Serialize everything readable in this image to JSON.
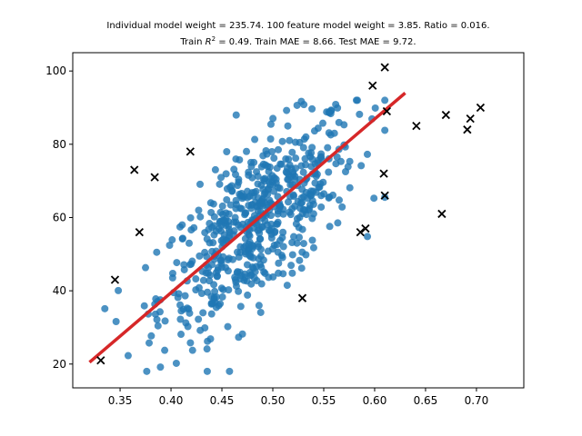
{
  "chart_data": {
    "type": "scatter",
    "title_line1": "Individual model weight = 235.74. 100 feature model weight = 3.85. Ratio = 0.016.",
    "title_line2_prefix": "Train ",
    "title_line2_r": "R",
    "title_line2_sup": "2",
    "title_line2_suffix": " = 0.49. Train MAE = 8.66. Test MAE = 9.72.",
    "xlim": [
      0.3035,
      0.7465
    ],
    "ylim": [
      13.5,
      105.0
    ],
    "x_ticks": [
      0.35,
      0.4,
      0.45,
      0.5,
      0.55,
      0.6,
      0.65,
      0.7
    ],
    "x_tick_labels": [
      "0.35",
      "0.40",
      "0.45",
      "0.50",
      "0.55",
      "0.60",
      "0.65",
      "0.70"
    ],
    "y_ticks": [
      20,
      40,
      60,
      80,
      100
    ],
    "y_tick_labels": [
      "20",
      "40",
      "60",
      "80",
      "100"
    ],
    "grid": false,
    "colors": {
      "train": "#1f77b4",
      "test": "#000000",
      "fit": "#d62728"
    },
    "fit_line": {
      "x": [
        0.32,
        0.63
      ],
      "y": [
        20.5,
        94.0
      ]
    },
    "test_points": [
      [
        0.331,
        21
      ],
      [
        0.345,
        43
      ],
      [
        0.364,
        73
      ],
      [
        0.369,
        56
      ],
      [
        0.384,
        71
      ],
      [
        0.419,
        78
      ],
      [
        0.529,
        38
      ],
      [
        0.586,
        56
      ],
      [
        0.591,
        57
      ],
      [
        0.598,
        96
      ],
      [
        0.609,
        72
      ],
      [
        0.61,
        66
      ],
      [
        0.61,
        101
      ],
      [
        0.612,
        89
      ],
      [
        0.641,
        85
      ],
      [
        0.666,
        61
      ],
      [
        0.67,
        88
      ],
      [
        0.691,
        84
      ],
      [
        0.694,
        87
      ],
      [
        0.704,
        90
      ]
    ],
    "train_summary": {
      "approx_count": 600,
      "x_mean": 0.485,
      "x_std": 0.048,
      "y_mean": 58.5,
      "y_std": 14.5,
      "correlation": 0.7,
      "x_range": [
        0.335,
        0.61
      ],
      "y_range": [
        18,
        92
      ]
    }
  }
}
